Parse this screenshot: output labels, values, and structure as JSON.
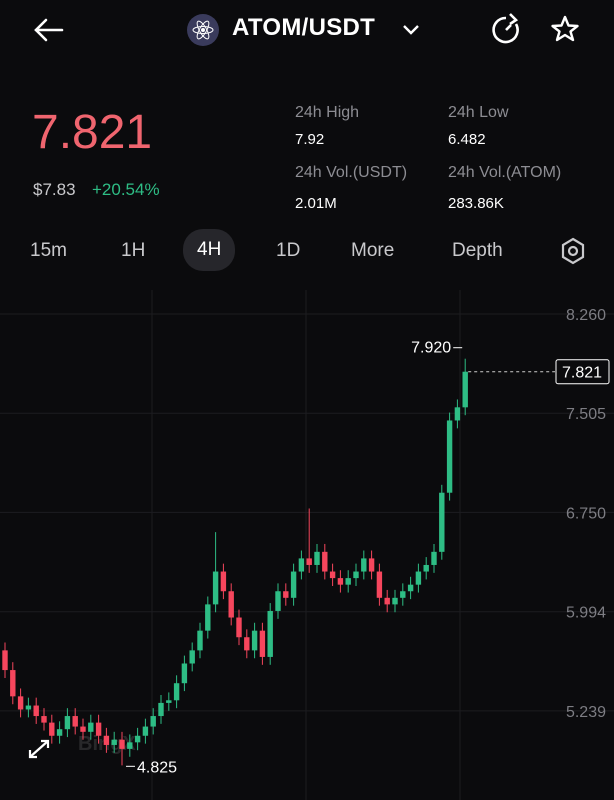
{
  "header": {
    "pair": "ATOM/USDT"
  },
  "ticker": {
    "price": "7.821",
    "usd_price": "$7.83",
    "change": "+20.54%"
  },
  "stats": [
    {
      "label": "24h High",
      "value": "7.92"
    },
    {
      "label": "24h Low",
      "value": "6.482"
    },
    {
      "label": "24h Vol.(USDT)",
      "value": "2.01M"
    },
    {
      "label": "24h Vol.(ATOM)",
      "value": "283.86K"
    }
  ],
  "tabs": [
    "15m",
    "1H",
    "4H",
    "1D",
    "More",
    "Depth"
  ],
  "selected_tab": 2,
  "chart_data": {
    "type": "candlestick",
    "open": [
      5.7,
      5.55,
      5.35,
      5.25,
      5.28,
      5.2,
      5.15,
      5.05,
      5.1,
      5.2,
      5.12,
      5.08,
      5.15,
      5.05,
      4.98,
      5.02,
      4.95,
      5.0,
      5.05,
      5.12,
      5.2,
      5.3,
      5.32,
      5.45,
      5.6,
      5.7,
      5.85,
      6.05,
      6.3,
      6.15,
      5.95,
      5.8,
      5.7,
      5.85,
      5.65,
      6.0,
      6.15,
      6.1,
      6.3,
      6.4,
      6.35,
      6.45,
      6.3,
      6.25,
      6.2,
      6.25,
      6.3,
      6.4,
      6.3,
      6.1,
      6.05,
      6.1,
      6.15,
      6.2,
      6.3,
      6.35,
      6.45,
      6.9,
      7.45,
      7.55
    ],
    "high": [
      5.76,
      5.61,
      5.41,
      5.34,
      5.34,
      5.26,
      5.21,
      5.16,
      5.26,
      5.26,
      5.18,
      5.21,
      5.21,
      5.11,
      5.08,
      5.08,
      5.06,
      5.11,
      5.18,
      5.26,
      5.36,
      5.38,
      5.51,
      5.66,
      5.76,
      5.91,
      6.11,
      6.6,
      6.36,
      6.21,
      6.01,
      5.86,
      5.91,
      5.91,
      6.06,
      6.21,
      6.21,
      6.36,
      6.46,
      6.78,
      6.51,
      6.51,
      6.36,
      6.31,
      6.31,
      6.36,
      6.46,
      6.46,
      6.36,
      6.16,
      6.16,
      6.21,
      6.26,
      6.36,
      6.41,
      6.51,
      6.96,
      7.51,
      7.61,
      7.92
    ],
    "low": [
      5.49,
      5.29,
      5.19,
      5.19,
      5.14,
      5.09,
      4.99,
      4.99,
      5.04,
      5.06,
      5.02,
      5.02,
      4.99,
      4.92,
      4.92,
      4.825,
      4.89,
      4.94,
      4.99,
      5.06,
      5.14,
      5.24,
      5.26,
      5.39,
      5.54,
      5.64,
      5.79,
      5.99,
      6.09,
      5.89,
      5.74,
      5.64,
      5.64,
      5.59,
      5.59,
      5.94,
      6.04,
      6.04,
      6.24,
      6.29,
      6.29,
      6.24,
      6.19,
      6.14,
      6.14,
      6.19,
      6.24,
      6.24,
      6.04,
      5.99,
      5.99,
      6.04,
      6.09,
      6.14,
      6.24,
      6.29,
      6.39,
      6.84,
      7.39,
      7.49
    ],
    "close": [
      5.55,
      5.35,
      5.25,
      5.28,
      5.2,
      5.15,
      5.05,
      5.1,
      5.2,
      5.12,
      5.08,
      5.15,
      5.05,
      4.98,
      5.02,
      4.95,
      5.0,
      5.05,
      5.12,
      5.2,
      5.3,
      5.32,
      5.45,
      5.6,
      5.7,
      5.85,
      6.05,
      6.3,
      6.15,
      5.95,
      5.8,
      5.7,
      5.85,
      5.65,
      6.0,
      6.15,
      6.1,
      6.3,
      6.4,
      6.35,
      6.45,
      6.3,
      6.25,
      6.2,
      6.25,
      6.3,
      6.4,
      6.3,
      6.1,
      6.05,
      6.1,
      6.15,
      6.2,
      6.3,
      6.35,
      6.45,
      6.9,
      7.45,
      7.55,
      7.821
    ],
    "ylim": [
      4.561,
      8.443
    ],
    "yticks": [
      {
        "value": 8.26,
        "label": "8.260"
      },
      7.505,
      {
        "value": 6.75,
        "label": "6.750"
      },
      5.994,
      5.239
    ],
    "grid": true,
    "up_color": "#2ebd85",
    "down_color": "#f6465d",
    "high_label": "7.920",
    "low_label": "4.825",
    "last_price_label": "7.821",
    "watermark": "BingX"
  }
}
